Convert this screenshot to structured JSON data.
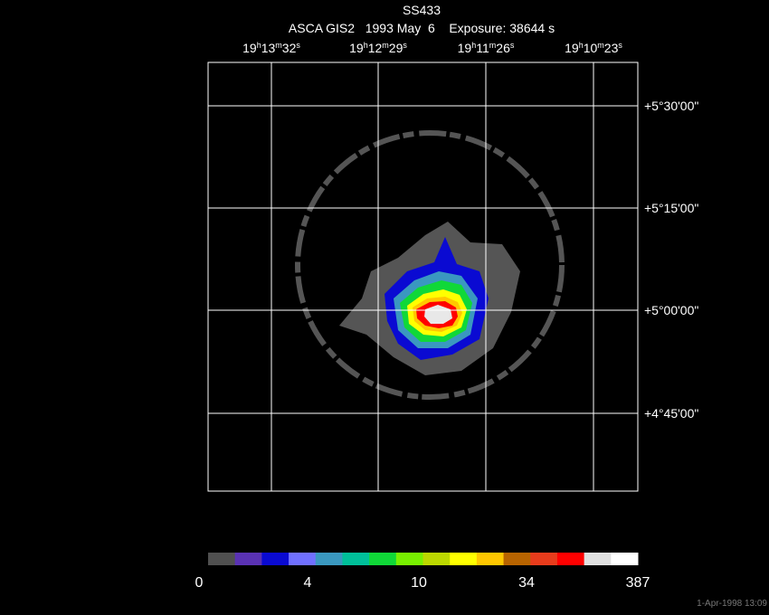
{
  "title": "SS433",
  "subtitle": "ASCA GIS2   1993 May  6    Exposure: 38644 s",
  "ra_labels": [
    [
      "19",
      "h",
      "13",
      "m",
      "32",
      "s"
    ],
    [
      "19",
      "h",
      "12",
      "m",
      "29",
      "s"
    ],
    [
      "19",
      "h",
      "11",
      "m",
      "26",
      "s"
    ],
    [
      "19",
      "h",
      "10",
      "m",
      "23",
      "s"
    ]
  ],
  "dec_labels": [
    "+5°30'00\"",
    "+5°15'00\"",
    "+5°00'00\"",
    "+4°45'00\""
  ],
  "colorbar": {
    "colors": [
      "#505050",
      "#5a32b4",
      "#0a0ad2",
      "#7070ff",
      "#3a98c0",
      "#00c09a",
      "#10d838",
      "#78f000",
      "#bcd800",
      "#ffff00",
      "#ffc800",
      "#b86400",
      "#e83c1c",
      "#ff0000",
      "#e0e0e0",
      "#ffffff"
    ],
    "labels": [
      "0",
      "4",
      "10",
      "34",
      "387"
    ]
  },
  "timestamp": "1-Apr-1998 13:09"
}
